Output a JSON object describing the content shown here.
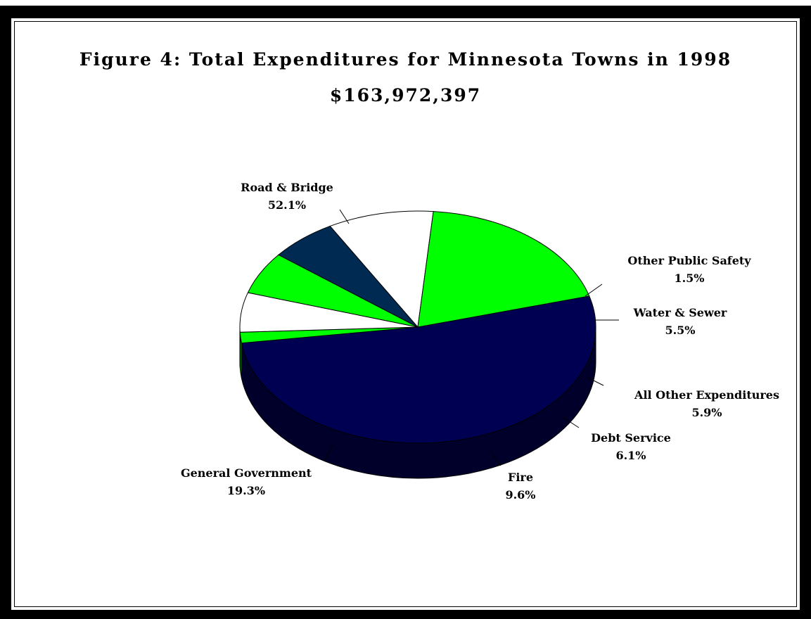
{
  "chart_data": {
    "type": "pie",
    "title": "Figure 4:  Total Expenditures for Minnesota Towns in 1998",
    "subtitle": "$163,972,397",
    "slices": [
      {
        "label": "Road & Bridge",
        "pct_label": "52.1%",
        "value": 52.1,
        "color": "#000052",
        "side_color": "#00002a"
      },
      {
        "label": "Other Public Safety",
        "pct_label": "1.5%",
        "value": 1.5,
        "color": "#00ff00",
        "side_color": "#008000"
      },
      {
        "label": "Water & Sewer",
        "pct_label": "5.5%",
        "value": 5.5,
        "color": "#ffffff",
        "side_color": "#808080"
      },
      {
        "label": "All Other Expenditures",
        "pct_label": "5.9%",
        "value": 5.9,
        "color": "#00ff00",
        "side_color": "#008000"
      },
      {
        "label": "Debt Service",
        "pct_label": "6.1%",
        "value": 6.1,
        "color": "#002a52",
        "side_color": "#001529"
      },
      {
        "label": "Fire",
        "pct_label": "9.6%",
        "value": 9.6,
        "color": "#ffffff",
        "side_color": "#888888"
      },
      {
        "label": "General Government",
        "pct_label": "19.3%",
        "value": 19.3,
        "color": "#00ff00",
        "side_color": "#008000"
      }
    ]
  }
}
